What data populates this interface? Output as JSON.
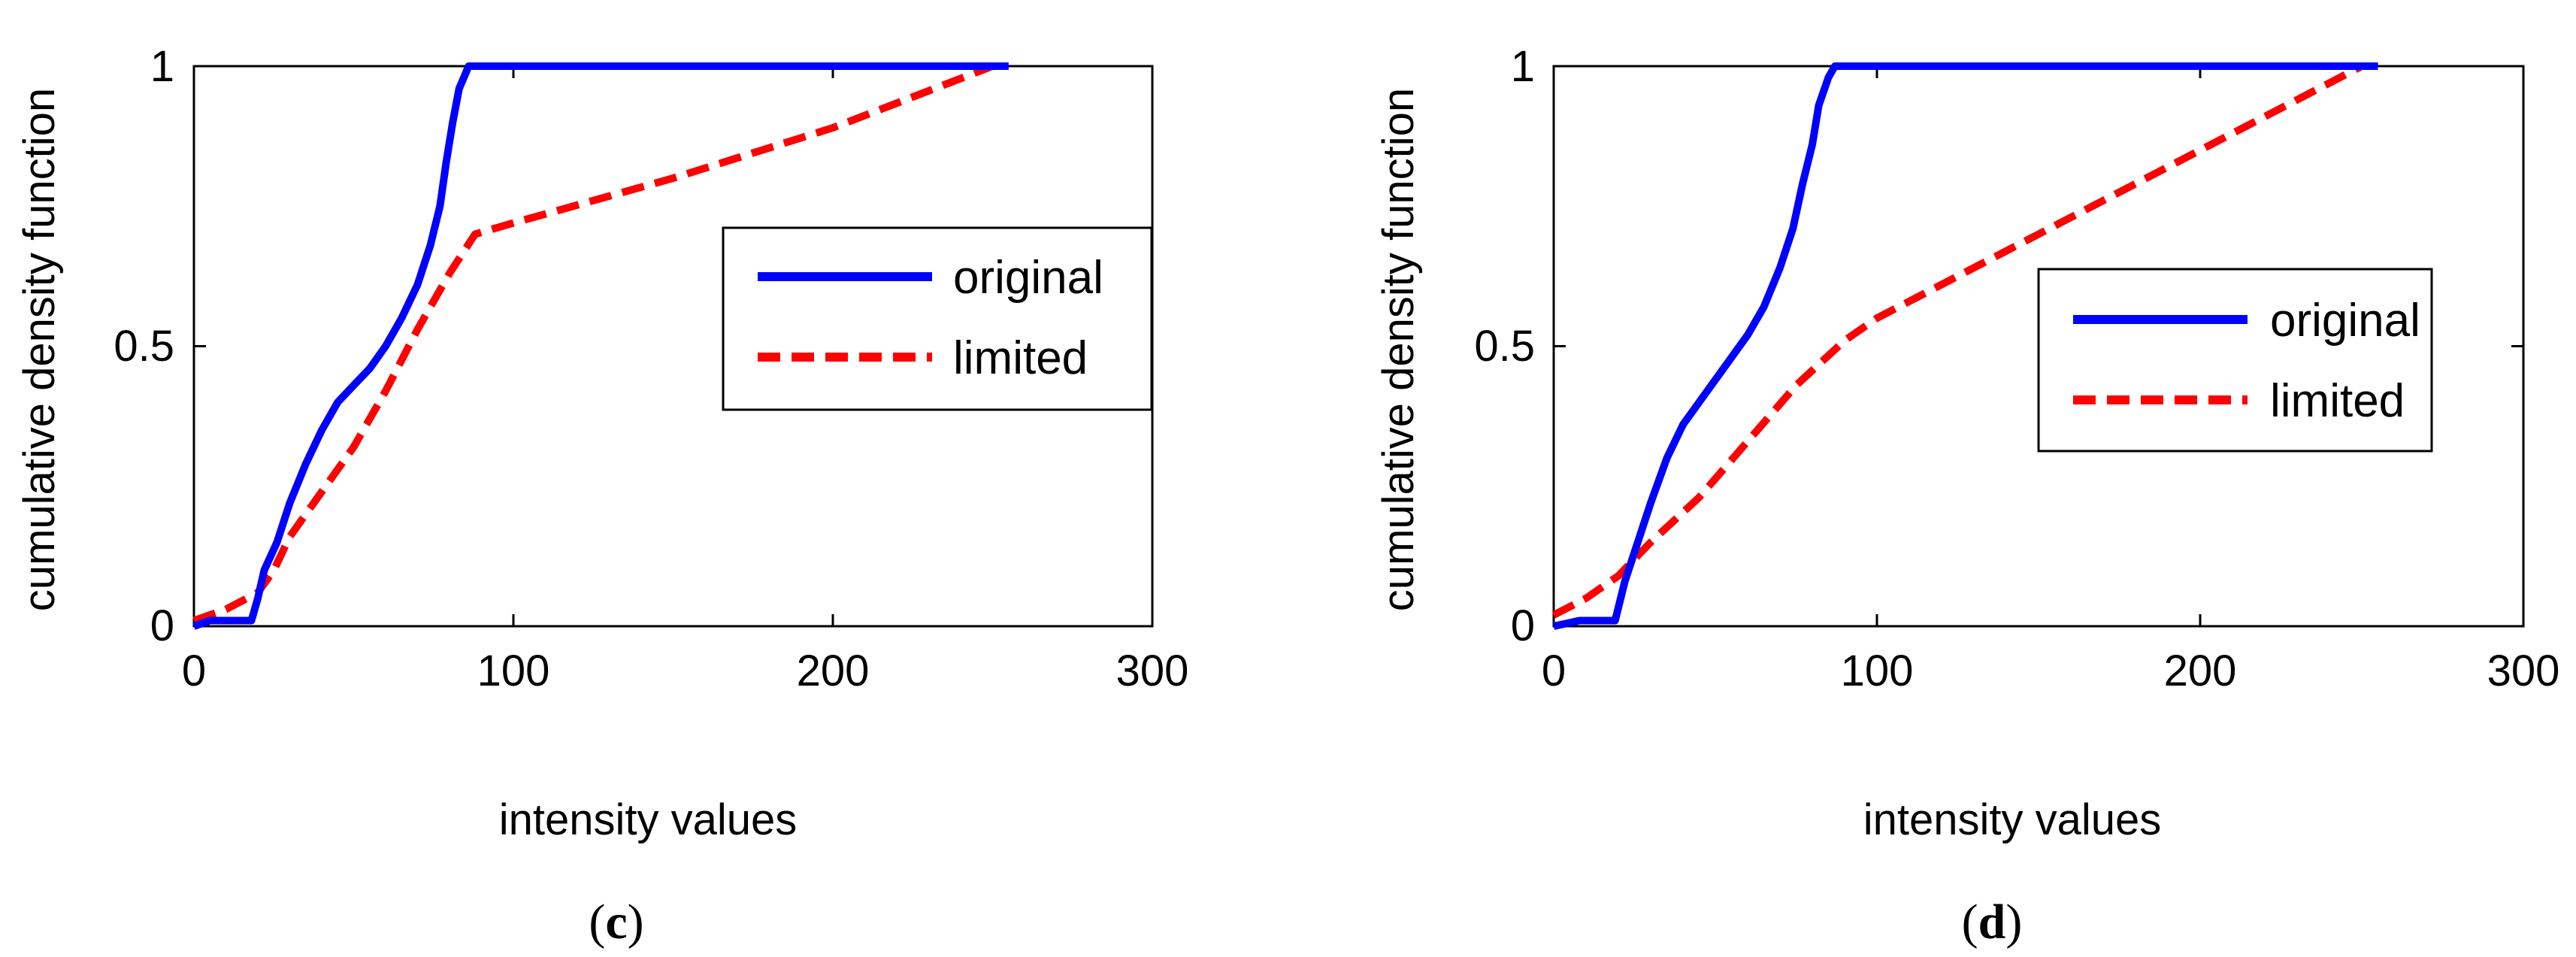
{
  "chart_data": [
    {
      "type": "line",
      "panel_label": {
        "open": "(",
        "letter": "c",
        "close": ")"
      },
      "xlabel": "intensity values",
      "ylabel": "cumulative density function",
      "xlim": [
        0,
        300
      ],
      "ylim": [
        0,
        1
      ],
      "xticks": [
        "0",
        "100",
        "200",
        "300"
      ],
      "yticks": [
        "0",
        "0.5",
        "1"
      ],
      "grid": false,
      "legend_position": "right",
      "series": [
        {
          "name": "original",
          "color": "#0000ff",
          "style": "solid",
          "points": [
            [
              0,
              0
            ],
            [
              5,
              0.01
            ],
            [
              18,
              0.01
            ],
            [
              20,
              0.05
            ],
            [
              22,
              0.1
            ],
            [
              26,
              0.15
            ],
            [
              30,
              0.22
            ],
            [
              35,
              0.29
            ],
            [
              40,
              0.35
            ],
            [
              45,
              0.4
            ],
            [
              50,
              0.43
            ],
            [
              55,
              0.46
            ],
            [
              60,
              0.5
            ],
            [
              65,
              0.55
            ],
            [
              70,
              0.61
            ],
            [
              74,
              0.68
            ],
            [
              77,
              0.75
            ],
            [
              79,
              0.83
            ],
            [
              81,
              0.9
            ],
            [
              83,
              0.96
            ],
            [
              86,
              1.0
            ],
            [
              105,
              1.0
            ],
            [
              255,
              1.0
            ]
          ]
        },
        {
          "name": "limited",
          "color": "#ff0000",
          "style": "dashed",
          "points": [
            [
              0,
              0.01
            ],
            [
              10,
              0.03
            ],
            [
              20,
              0.06
            ],
            [
              25,
              0.1
            ],
            [
              30,
              0.16
            ],
            [
              40,
              0.24
            ],
            [
              50,
              0.32
            ],
            [
              60,
              0.42
            ],
            [
              70,
              0.53
            ],
            [
              80,
              0.63
            ],
            [
              88,
              0.7
            ],
            [
              100,
              0.72
            ],
            [
              150,
              0.8
            ],
            [
              200,
              0.89
            ],
            [
              250,
              1.0
            ]
          ]
        }
      ]
    },
    {
      "type": "line",
      "panel_label": {
        "open": "(",
        "letter": "d",
        "close": ")"
      },
      "xlabel": "intensity values",
      "ylabel": "cumulative density function",
      "xlim": [
        0,
        300
      ],
      "ylim": [
        0,
        1
      ],
      "xticks": [
        "0",
        "100",
        "200",
        "300"
      ],
      "yticks": [
        "0",
        "0.5",
        "1"
      ],
      "grid": false,
      "legend_position": "right",
      "series": [
        {
          "name": "original",
          "color": "#0000ff",
          "style": "solid",
          "points": [
            [
              0,
              0
            ],
            [
              8,
              0.01
            ],
            [
              19,
              0.01
            ],
            [
              22,
              0.08
            ],
            [
              26,
              0.15
            ],
            [
              30,
              0.22
            ],
            [
              35,
              0.3
            ],
            [
              40,
              0.36
            ],
            [
              45,
              0.4
            ],
            [
              50,
              0.44
            ],
            [
              55,
              0.48
            ],
            [
              60,
              0.52
            ],
            [
              65,
              0.57
            ],
            [
              70,
              0.64
            ],
            [
              74,
              0.71
            ],
            [
              77,
              0.79
            ],
            [
              80,
              0.86
            ],
            [
              82,
              0.93
            ],
            [
              85,
              0.98
            ],
            [
              87,
              1.0
            ],
            [
              105,
              1.0
            ],
            [
              255,
              1.0
            ]
          ]
        },
        {
          "name": "limited",
          "color": "#ff0000",
          "style": "dashed",
          "points": [
            [
              0,
              0.02
            ],
            [
              10,
              0.05
            ],
            [
              20,
              0.09
            ],
            [
              30,
              0.15
            ],
            [
              45,
              0.23
            ],
            [
              60,
              0.33
            ],
            [
              75,
              0.43
            ],
            [
              90,
              0.51
            ],
            [
              100,
              0.55
            ],
            [
              150,
              0.7
            ],
            [
              200,
              0.85
            ],
            [
              250,
              1.0
            ]
          ]
        }
      ]
    }
  ]
}
